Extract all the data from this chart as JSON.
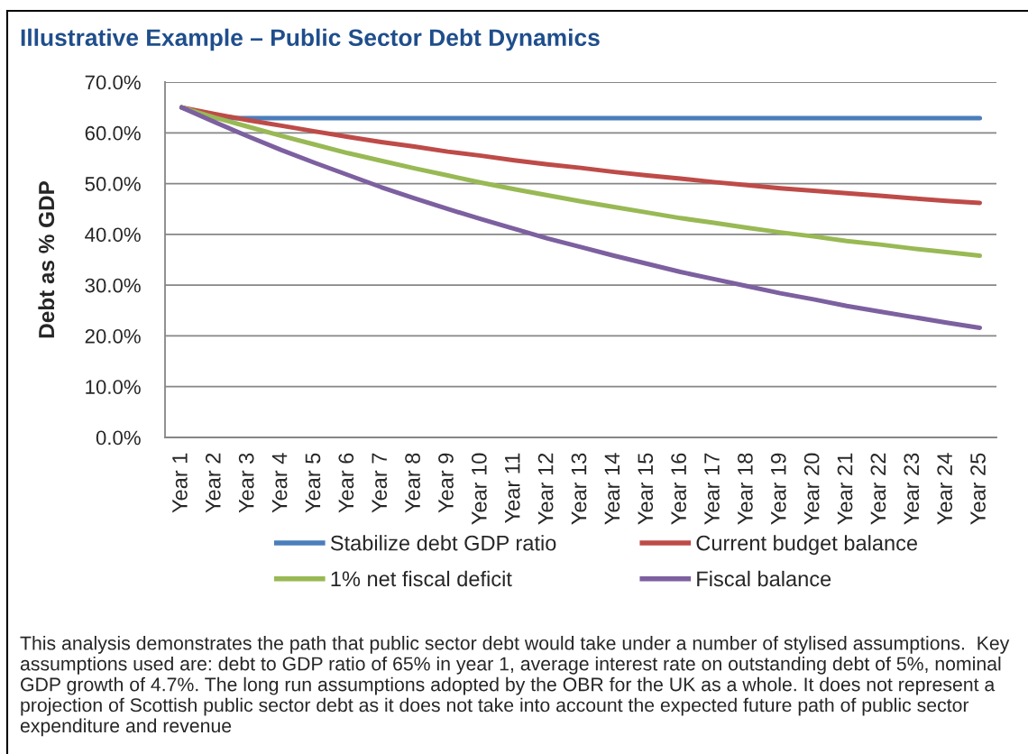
{
  "chart_data": {
    "type": "line",
    "title": "Illustrative Example – Public Sector Debt Dynamics",
    "ylabel": "Debt as % GDP",
    "categories": [
      "Year 1",
      "Year 2",
      "Year 3",
      "Year 4",
      "Year 5",
      "Year 6",
      "Year 7",
      "Year 8",
      "Year 9",
      "Year 10",
      "Year 11",
      "Year 12",
      "Year 13",
      "Year 14",
      "Year 15",
      "Year 16",
      "Year 17",
      "Year 18",
      "Year 19",
      "Year 20",
      "Year 21",
      "Year 22",
      "Year 23",
      "Year 24",
      "Year 25"
    ],
    "series": [
      {
        "name": "Stabilize debt GDP ratio",
        "color": "#4a7ebb",
        "values": [
          65.0,
          62.9,
          62.9,
          62.9,
          62.9,
          62.9,
          62.9,
          62.9,
          62.9,
          62.9,
          62.9,
          62.9,
          62.9,
          62.9,
          62.9,
          62.9,
          62.9,
          62.9,
          62.9,
          62.9,
          62.9,
          62.9,
          62.9,
          62.9,
          62.9
        ]
      },
      {
        "name": "Current budget balance",
        "color": "#be4b48",
        "values": [
          65.0,
          63.7,
          62.5,
          61.4,
          60.3,
          59.2,
          58.2,
          57.3,
          56.3,
          55.5,
          54.6,
          53.8,
          53.1,
          52.3,
          51.6,
          51.0,
          50.3,
          49.7,
          49.1,
          48.6,
          48.1,
          47.6,
          47.1,
          46.6,
          46.2
        ]
      },
      {
        "name": "1% net fiscal deficit",
        "color": "#98b954",
        "values": [
          65.0,
          63.0,
          61.2,
          59.4,
          57.7,
          56.0,
          54.5,
          53.0,
          51.6,
          50.2,
          48.9,
          47.7,
          46.5,
          45.4,
          44.3,
          43.2,
          42.3,
          41.3,
          40.4,
          39.6,
          38.7,
          38.0,
          37.2,
          36.5,
          35.8
        ]
      },
      {
        "name": "Fiscal balance",
        "color": "#7d60a0",
        "values": [
          65.0,
          62.1,
          59.3,
          56.6,
          54.1,
          51.7,
          49.3,
          47.1,
          45.0,
          43.0,
          41.1,
          39.2,
          37.5,
          35.8,
          34.2,
          32.6,
          31.2,
          29.8,
          28.4,
          27.2,
          25.9,
          24.8,
          23.7,
          22.6,
          21.6
        ]
      }
    ],
    "ylim": [
      0,
      70
    ],
    "yticks": [
      {
        "value": 0,
        "label": "0.0%"
      },
      {
        "value": 10,
        "label": "10.0%"
      },
      {
        "value": 20,
        "label": "20.0%"
      },
      {
        "value": 30,
        "label": "30.0%"
      },
      {
        "value": 40,
        "label": "40.0%"
      },
      {
        "value": 50,
        "label": "50.0%"
      },
      {
        "value": 60,
        "label": "60.0%"
      },
      {
        "value": 70,
        "label": "70.0%"
      }
    ],
    "grid": "y",
    "legend": "bottom",
    "line_style": "solid",
    "annotations": [
      "This analysis demonstrates the path that public sector debt would take under a number of stylised assumptions.  Key assumptions used are: debt to GDP ratio of 65% in year 1, average interest rate on outstanding debt of 5%, nominal GDP growth of 4.7%. The long run assumptions adopted by the OBR for the UK as a whole. It does not represent a projection of Scottish public sector debt as it does not take into account the expected future path of public sector expenditure and revenue"
    ]
  }
}
